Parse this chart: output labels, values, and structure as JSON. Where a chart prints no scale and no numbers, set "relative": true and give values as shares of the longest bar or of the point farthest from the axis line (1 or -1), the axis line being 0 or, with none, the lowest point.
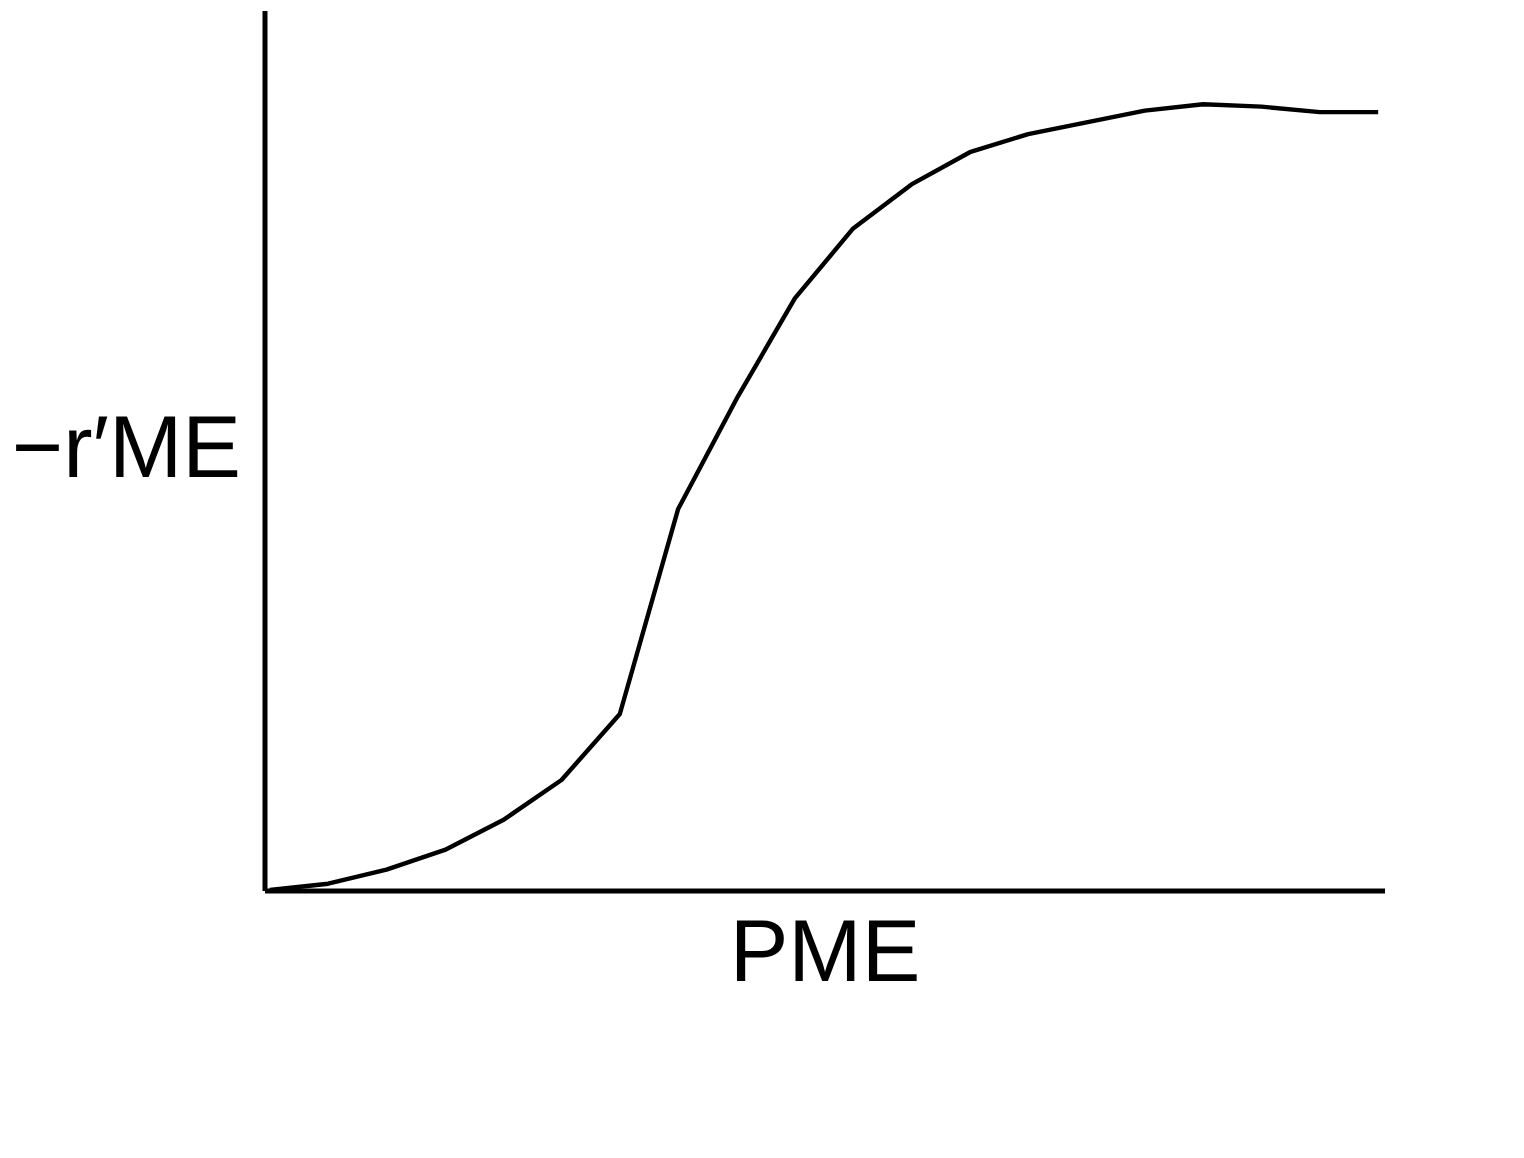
{
  "chart_data": {
    "type": "line",
    "relative": true,
    "xlabel": "PME",
    "ylabel": "−r′ME",
    "categories": [
      null,
      null,
      null,
      null,
      null,
      null,
      null,
      null,
      null,
      null,
      null,
      null,
      null,
      null,
      null,
      null,
      null,
      null,
      null,
      null
    ],
    "series": [
      {
        "color": "#000000",
        "values": [
          0,
          0.008,
          0.026,
          0.051,
          0.089,
          0.14,
          0.224,
          0.485,
          0.625,
          0.753,
          0.842,
          0.898,
          0.939,
          0.962,
          0.977,
          0.992,
          1.0,
          0.997,
          0.99,
          0.99
        ]
      }
    ],
    "grid": false,
    "legend": false,
    "marker": "none",
    "line_style": "solid",
    "tick_labels": false
  }
}
